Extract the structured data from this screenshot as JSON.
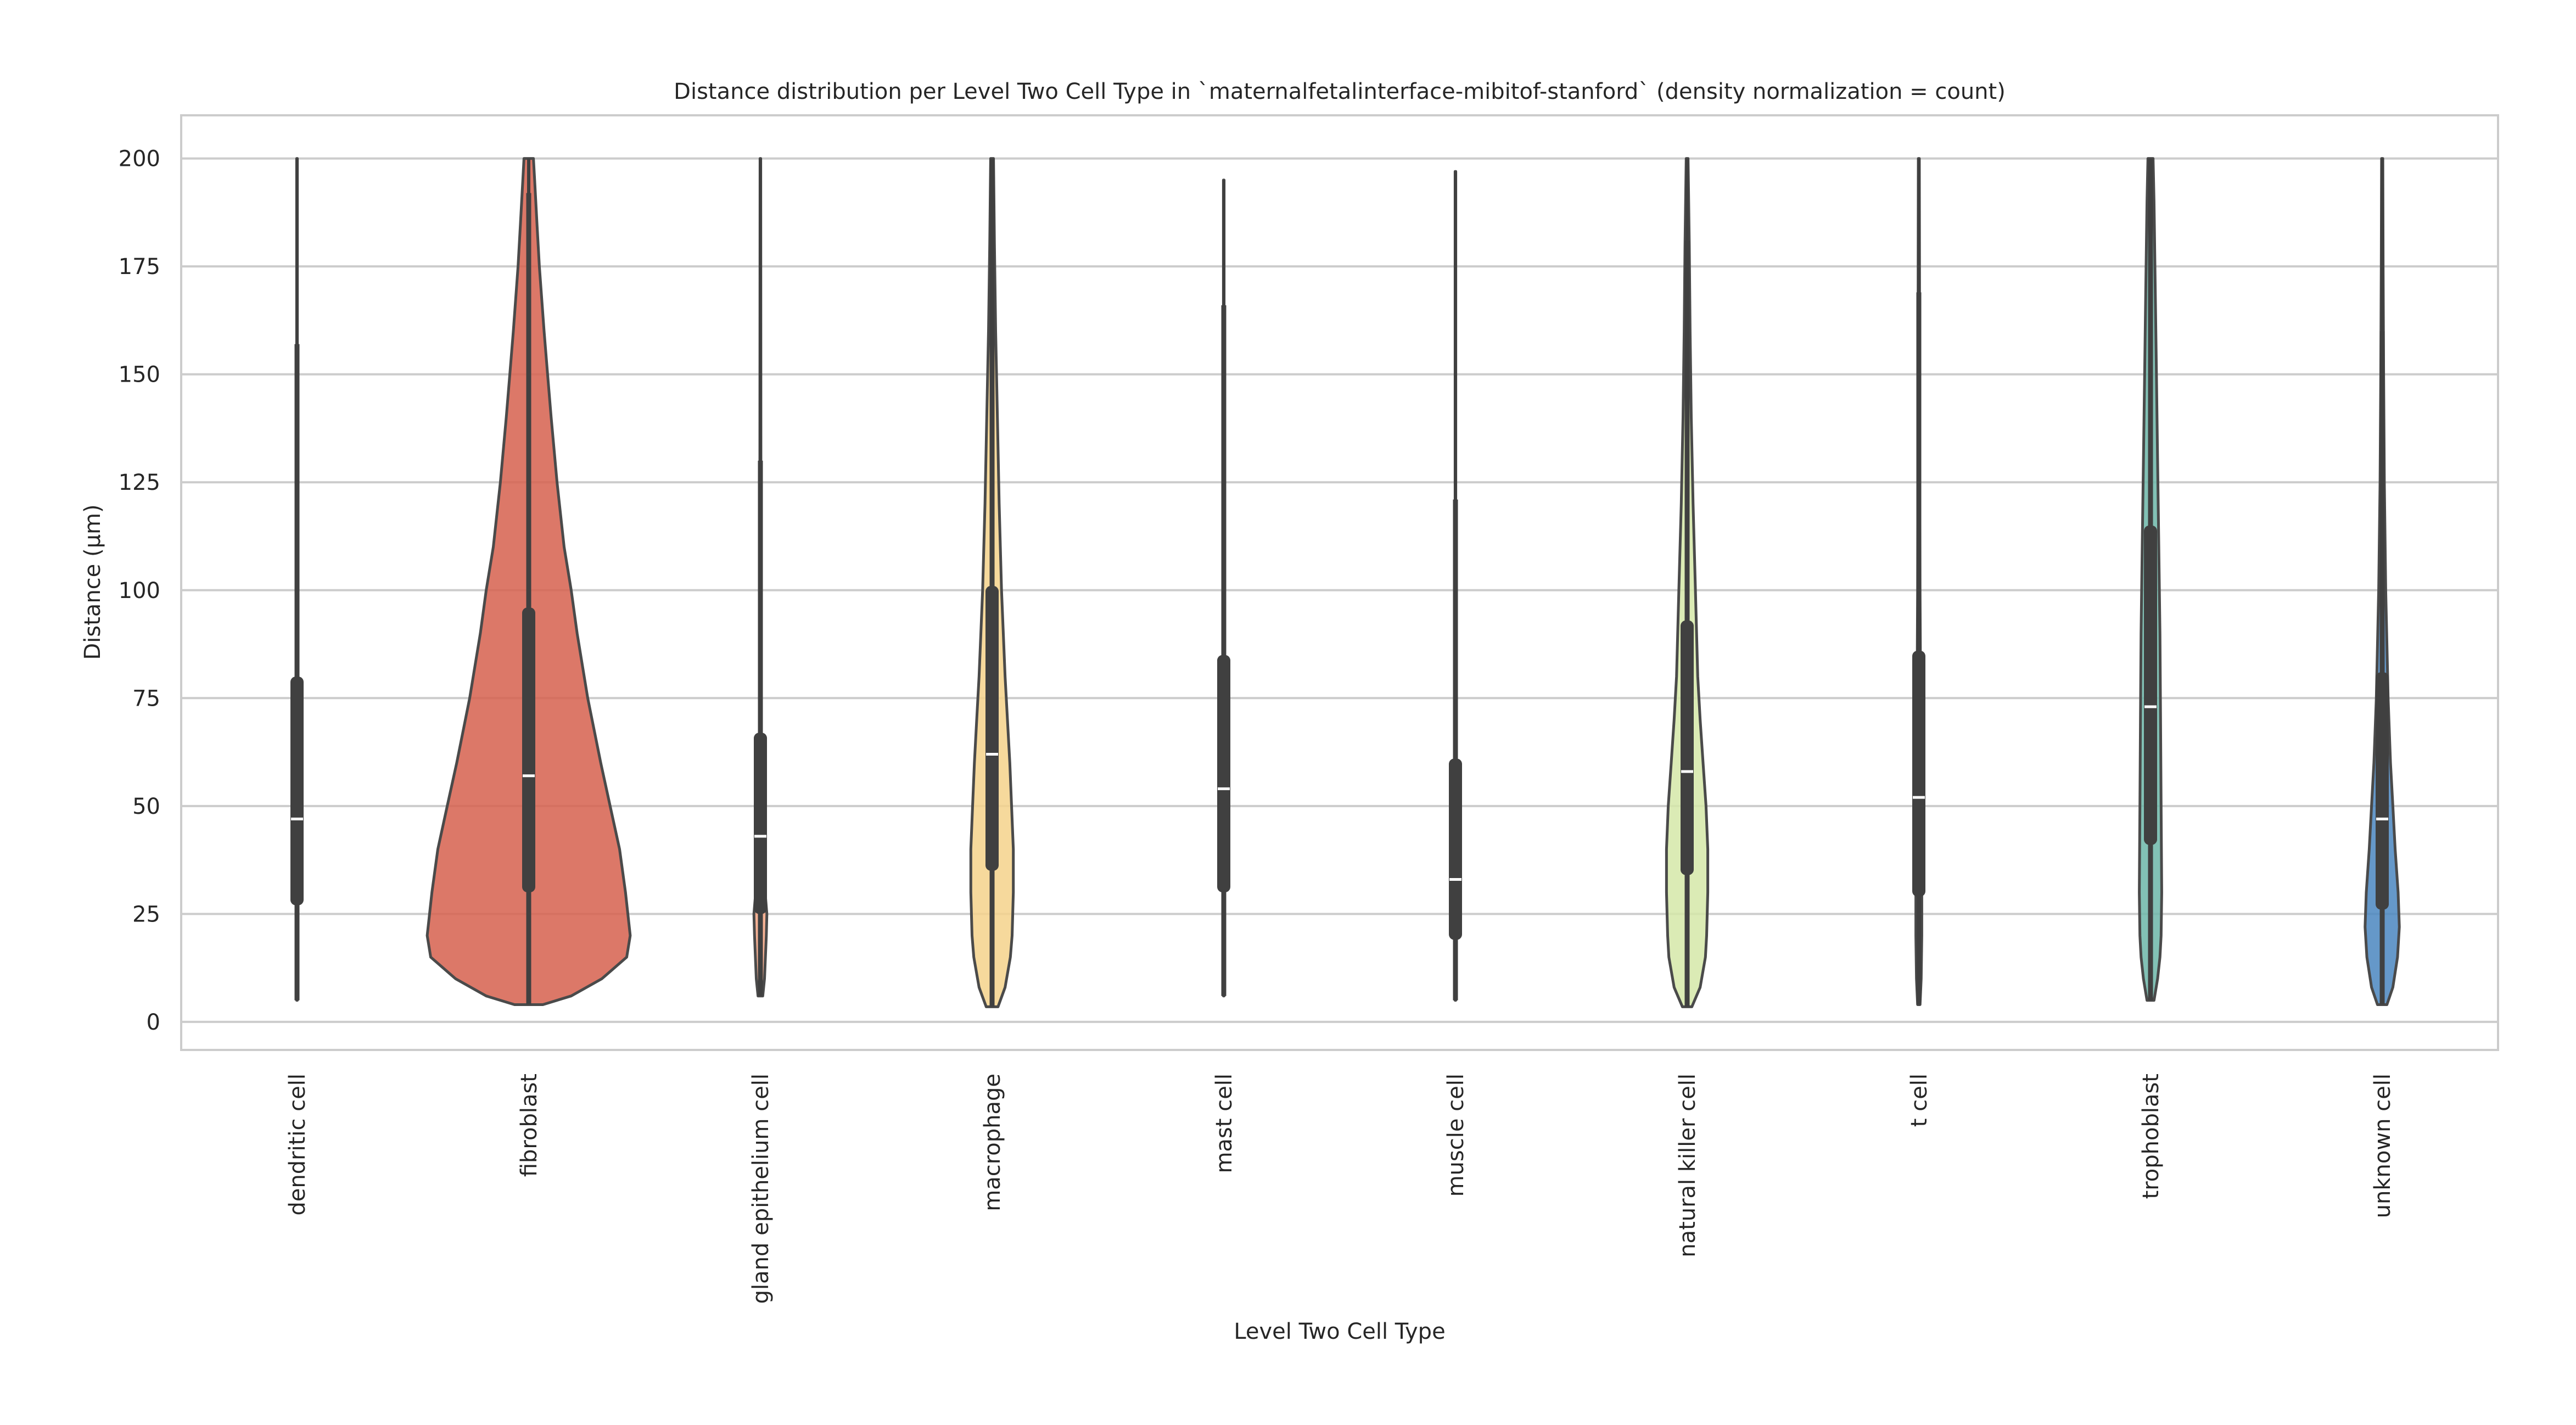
{
  "chart_data": {
    "type": "violin",
    "title": "Distance distribution per Level Two Cell Type in `maternalfetalinterface-mibitof-stanford` (density normalization = count)",
    "xlabel": "Level Two Cell Type",
    "ylabel": "Distance (µm)",
    "ylim": [
      -6.5,
      210
    ],
    "yticks": [
      0,
      25,
      50,
      75,
      100,
      125,
      150,
      175,
      200
    ],
    "grid": "horizontal",
    "categories": [
      "dendritic cell",
      "fibroblast",
      "gland epithelium cell",
      "macrophage",
      "mast cell",
      "muscle cell",
      "natural killer cell",
      "t cell",
      "trophoblast",
      "unknown cell"
    ],
    "series": [
      {
        "category": "dendritic cell",
        "color": "#d6604d",
        "min": 5,
        "q1": 27,
        "median": 47,
        "q3": 80,
        "max": 200,
        "whisker_low": 5,
        "whisker_high": 157,
        "density": [
          [
            5,
            0.3
          ],
          [
            200,
            0.3
          ]
        ]
      },
      {
        "category": "fibroblast",
        "color": "#d6604d",
        "min": 4,
        "q1": 30,
        "median": 57,
        "q3": 96,
        "max": 200,
        "whisker_low": 4,
        "whisker_high": 192,
        "density": [
          [
            4,
            12
          ],
          [
            6,
            36
          ],
          [
            10,
            62
          ],
          [
            15,
            83
          ],
          [
            20,
            86
          ],
          [
            30,
            82
          ],
          [
            40,
            77
          ],
          [
            50,
            69
          ],
          [
            60,
            61
          ],
          [
            75,
            50
          ],
          [
            90,
            41
          ],
          [
            100,
            36
          ],
          [
            110,
            30
          ],
          [
            125,
            24
          ],
          [
            140,
            19
          ],
          [
            150,
            16
          ],
          [
            160,
            13
          ],
          [
            175,
            9
          ],
          [
            185,
            7
          ],
          [
            195,
            5
          ],
          [
            200,
            4
          ]
        ]
      },
      {
        "category": "gland epithelium cell",
        "color": "#f4a582",
        "min": 6,
        "q1": 25,
        "median": 43,
        "q3": 67,
        "max": 200,
        "whisker_low": 6,
        "whisker_high": 130,
        "density": [
          [
            6,
            2
          ],
          [
            10,
            3.5
          ],
          [
            20,
            5
          ],
          [
            25,
            5.5
          ],
          [
            30,
            4
          ],
          [
            40,
            1.8
          ],
          [
            60,
            0.8
          ],
          [
            100,
            0.5
          ],
          [
            200,
            0.3
          ]
        ]
      },
      {
        "category": "macrophage",
        "color": "#f5d28b",
        "min": 3.5,
        "q1": 35,
        "median": 62,
        "q3": 101,
        "max": 200,
        "whisker_low": 3.5,
        "whisker_high": 200,
        "density": [
          [
            3.5,
            5
          ],
          [
            8,
            11
          ],
          [
            15,
            15.5
          ],
          [
            20,
            17
          ],
          [
            30,
            18
          ],
          [
            40,
            18
          ],
          [
            50,
            16.5
          ],
          [
            60,
            15
          ],
          [
            70,
            13
          ],
          [
            80,
            11
          ],
          [
            100,
            8
          ],
          [
            120,
            6
          ],
          [
            140,
            4.5
          ],
          [
            160,
            3
          ],
          [
            180,
            2
          ],
          [
            200,
            1.2
          ]
        ]
      },
      {
        "category": "mast cell",
        "color": "#f7f7b0",
        "min": 6,
        "q1": 30,
        "median": 54,
        "q3": 85,
        "max": 195,
        "whisker_low": 6,
        "whisker_high": 166,
        "density": [
          [
            6,
            0.3
          ],
          [
            195,
            0.3
          ]
        ]
      },
      {
        "category": "muscle cell",
        "color": "#d9ef8b",
        "min": 5,
        "q1": 19,
        "median": 33,
        "q3": 61,
        "max": 197,
        "whisker_low": 5,
        "whisker_high": 121,
        "density": [
          [
            5,
            0.3
          ],
          [
            197,
            0.3
          ]
        ]
      },
      {
        "category": "natural killer cell",
        "color": "#d5e8a8",
        "min": 3.5,
        "q1": 34,
        "median": 58,
        "q3": 93,
        "max": 200,
        "whisker_low": 3.5,
        "whisker_high": 181,
        "density": [
          [
            3.5,
            4
          ],
          [
            8,
            11
          ],
          [
            15,
            15.5
          ],
          [
            20,
            16.5
          ],
          [
            30,
            17.5
          ],
          [
            40,
            17.5
          ],
          [
            50,
            16
          ],
          [
            60,
            13.5
          ],
          [
            70,
            11
          ],
          [
            80,
            9
          ],
          [
            100,
            7
          ],
          [
            120,
            5
          ],
          [
            140,
            3.5
          ],
          [
            160,
            2.5
          ],
          [
            180,
            1.8
          ],
          [
            200,
            0.8
          ]
        ]
      },
      {
        "category": "t cell",
        "color": "#abdda4",
        "min": 4,
        "q1": 29,
        "median": 52,
        "q3": 86,
        "max": 200,
        "whisker_low": 4,
        "whisker_high": 169,
        "density": [
          [
            4,
            1
          ],
          [
            10,
            2
          ],
          [
            20,
            2.5
          ],
          [
            35,
            2.5
          ],
          [
            60,
            1.8
          ],
          [
            100,
            1
          ],
          [
            200,
            0.4
          ]
        ]
      },
      {
        "category": "trophoblast",
        "color": "#6cb6a8",
        "min": 5,
        "q1": 41,
        "median": 73,
        "q3": 115,
        "max": 200,
        "whisker_low": 5,
        "whisker_high": 200,
        "density": [
          [
            5,
            3
          ],
          [
            10,
            6
          ],
          [
            15,
            8
          ],
          [
            20,
            9
          ],
          [
            30,
            9.5
          ],
          [
            50,
            9
          ],
          [
            70,
            8.5
          ],
          [
            90,
            8
          ],
          [
            110,
            7
          ],
          [
            130,
            6
          ],
          [
            150,
            5
          ],
          [
            170,
            4
          ],
          [
            190,
            3
          ],
          [
            200,
            2.2
          ]
        ]
      },
      {
        "category": "unknown cell",
        "color": "#4a86bf",
        "min": 4,
        "q1": 26,
        "median": 47,
        "q3": 81,
        "max": 200,
        "whisker_low": 4,
        "whisker_high": 160,
        "density": [
          [
            4,
            4
          ],
          [
            8,
            9
          ],
          [
            15,
            13
          ],
          [
            22,
            14.5
          ],
          [
            30,
            13.5
          ],
          [
            40,
            11
          ],
          [
            50,
            9
          ],
          [
            60,
            7
          ],
          [
            75,
            5
          ],
          [
            100,
            3
          ],
          [
            125,
            1.8
          ],
          [
            150,
            1.2
          ],
          [
            175,
            0.8
          ],
          [
            200,
            0.5
          ]
        ]
      }
    ]
  }
}
